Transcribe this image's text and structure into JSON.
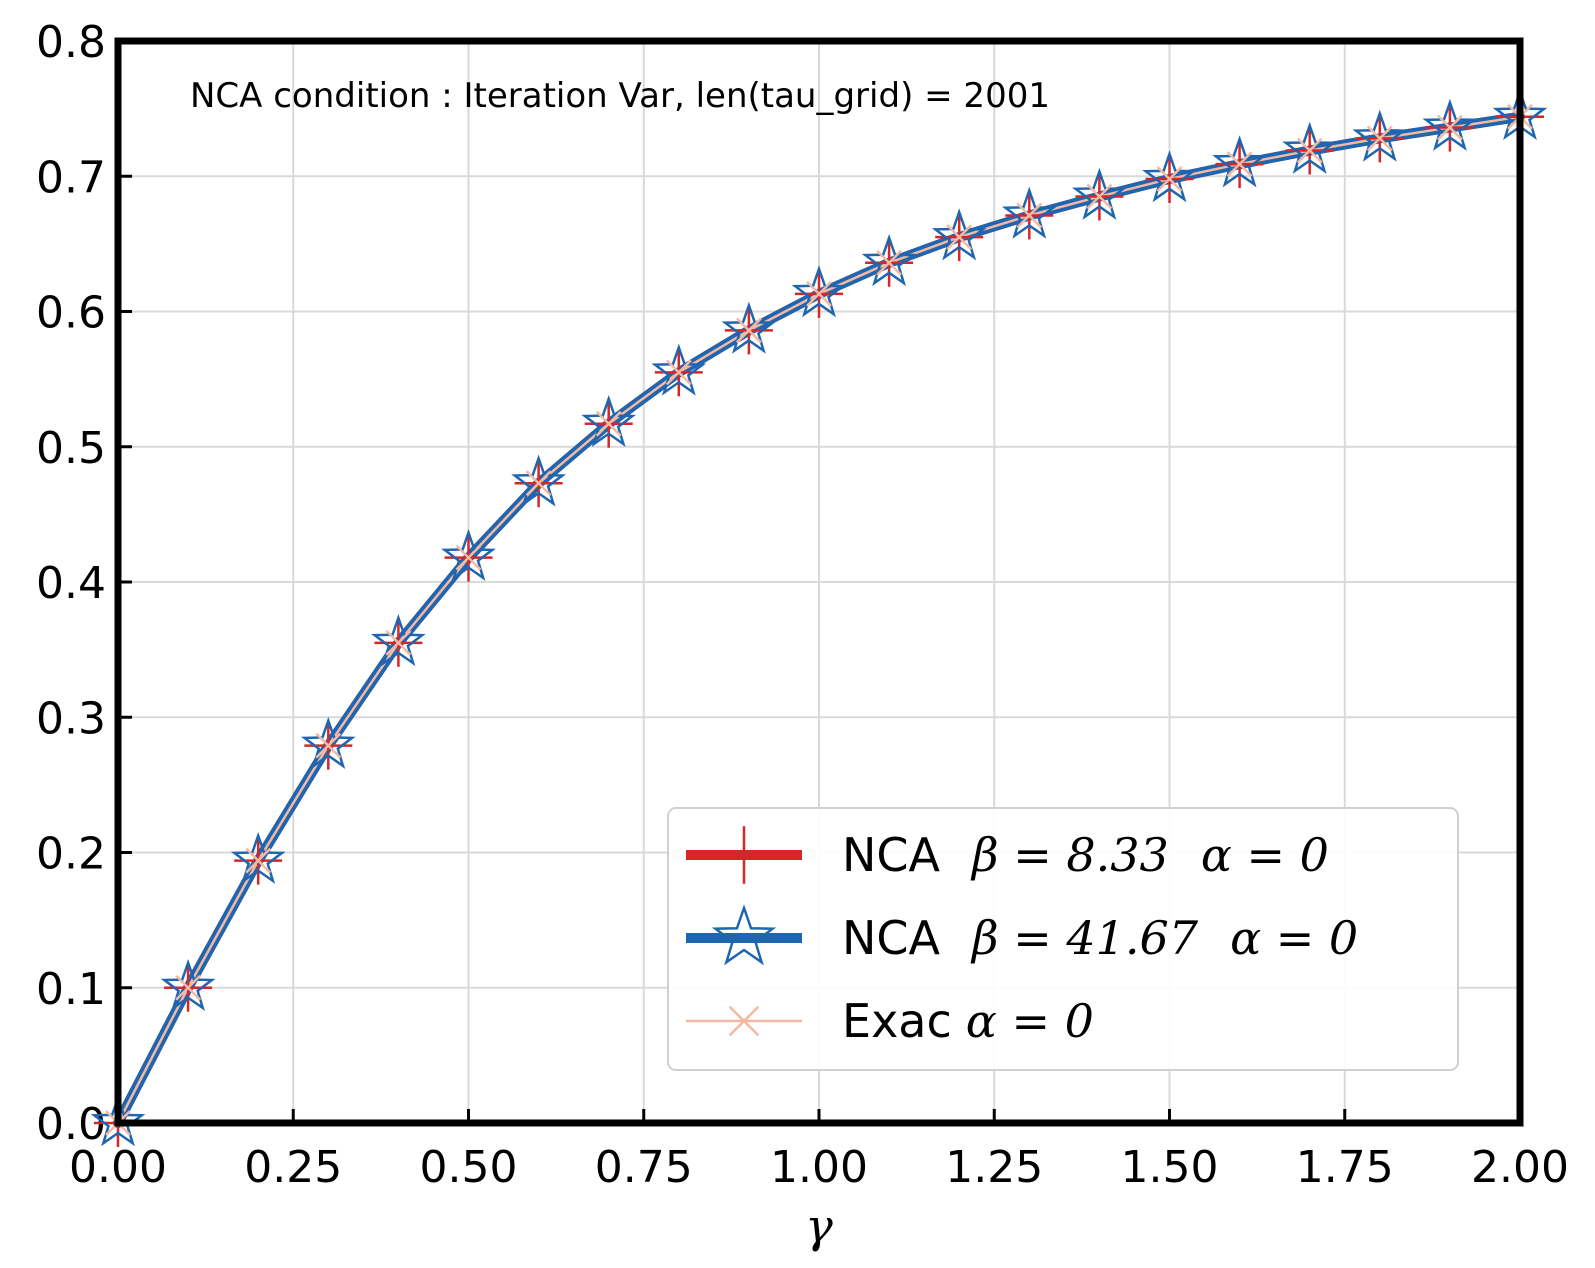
{
  "chart_data": {
    "type": "line",
    "annotation": "NCA condition : Iteration Var, len(tau_grid) = 2001",
    "xlabel": "γ",
    "ylabel": "",
    "xlim": [
      0,
      2
    ],
    "ylim": [
      0,
      0.8
    ],
    "x_ticks": [
      "0.00",
      "0.25",
      "0.50",
      "0.75",
      "1.00",
      "1.25",
      "1.50",
      "1.75",
      "2.00"
    ],
    "y_ticks": [
      "0.0",
      "0.1",
      "0.2",
      "0.3",
      "0.4",
      "0.5",
      "0.6",
      "0.7",
      "0.8"
    ],
    "grid": true,
    "legend_position": "lower-right",
    "x": [
      0,
      0.1,
      0.2,
      0.3,
      0.4,
      0.5,
      0.6,
      0.7,
      0.8,
      0.9,
      1.0,
      1.1,
      1.2,
      1.3,
      1.4,
      1.5,
      1.6,
      1.7,
      1.8,
      1.9,
      2.0
    ],
    "series": [
      {
        "legend_name": "NCA",
        "legend_beta": "β = 8.33",
        "legend_alpha": "α = 0",
        "color": "#d62728",
        "marker": "plus",
        "values": [
          0,
          0.1,
          0.194,
          0.279,
          0.355,
          0.418,
          0.473,
          0.517,
          0.555,
          0.586,
          0.613,
          0.636,
          0.655,
          0.671,
          0.685,
          0.698,
          0.709,
          0.719,
          0.728,
          0.736,
          0.744
        ]
      },
      {
        "legend_name": "NCA",
        "legend_beta": "β = 41.67",
        "legend_alpha": "α = 0",
        "color": "#1f66b0",
        "marker": "star",
        "values": [
          0,
          0.1,
          0.194,
          0.279,
          0.355,
          0.418,
          0.473,
          0.517,
          0.555,
          0.586,
          0.613,
          0.636,
          0.655,
          0.671,
          0.685,
          0.698,
          0.709,
          0.719,
          0.728,
          0.736,
          0.744
        ]
      },
      {
        "legend_name": "Exac",
        "legend_beta": "",
        "legend_alpha": "α = 0",
        "color": "#f4b9a3",
        "marker": "x",
        "values": [
          0,
          0.1,
          0.194,
          0.279,
          0.355,
          0.418,
          0.473,
          0.517,
          0.555,
          0.586,
          0.613,
          0.636,
          0.655,
          0.671,
          0.685,
          0.698,
          0.709,
          0.719,
          0.728,
          0.736,
          0.744
        ]
      }
    ]
  }
}
